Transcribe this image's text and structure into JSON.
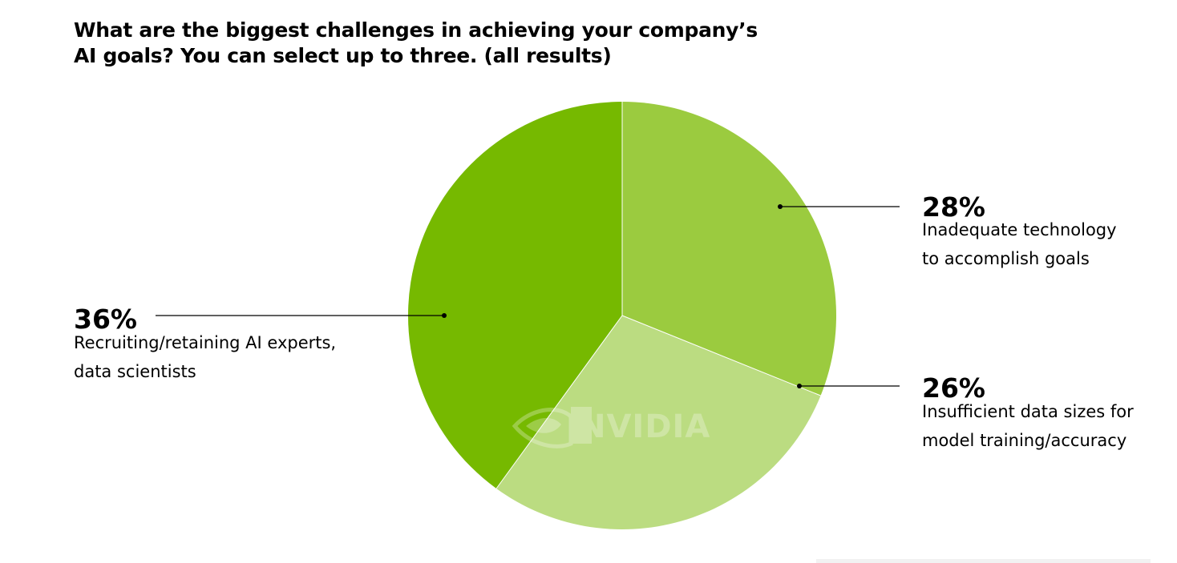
{
  "title": "What are the biggest challenges in achieving your company’s AI goals? You can select up to three. (all results)",
  "watermark": {
    "text": "NVIDIA",
    "icon": "nvidia-eye-icon"
  },
  "chart_data": {
    "type": "pie",
    "title": "What are the biggest challenges in achieving your company’s AI goals? You can select up to three. (all results)",
    "slices": [
      {
        "label_lines": [
          "Inadequate technology",
          "to accomplish goals"
        ],
        "value": 28,
        "value_label": "28%",
        "color": "#9bcb3f"
      },
      {
        "label_lines": [
          "Insufficient data sizes for",
          "model training/accuracy"
        ],
        "value": 26,
        "value_label": "26%",
        "color": "#bbdc81"
      },
      {
        "label_lines": [
          "Recruiting/retaining AI experts,",
          "data scientists"
        ],
        "value": 36,
        "value_label": "36%",
        "color": "#76b900"
      }
    ],
    "legend": "none",
    "start": "top",
    "direction": "clockwise"
  }
}
